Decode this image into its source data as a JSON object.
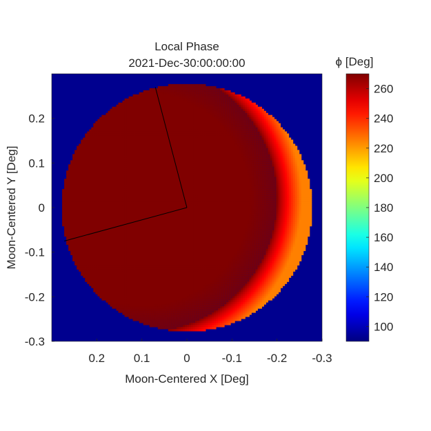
{
  "chart_data": {
    "type": "heatmap",
    "title": [
      "Local Phase",
      "2021-Dec-30:00:00:00"
    ],
    "xlabel": "Moon-Centered X [Deg]",
    "ylabel": "Moon-Centered Y [Deg]",
    "xlim": [
      0.3,
      -0.3
    ],
    "ylim": [
      -0.3,
      0.3
    ],
    "x_reversed": true,
    "xticks": [
      0.2,
      0.1,
      0,
      -0.1,
      -0.2,
      -0.3
    ],
    "xtick_labels": [
      "0.2",
      "0.1",
      "0",
      "-0.1",
      "-0.2",
      "-0.3"
    ],
    "yticks": [
      0.2,
      0.1,
      0,
      -0.1,
      -0.2,
      -0.3
    ],
    "ytick_labels": [
      "0.2",
      "0.1",
      "0",
      "-0.1",
      "-0.2",
      "-0.3"
    ],
    "grid": false,
    "colormap": "jet",
    "background_color": "#00008f",
    "colorbar": {
      "label": "ϕ [Deg]",
      "range": [
        90,
        270
      ],
      "ticks": [
        100,
        120,
        140,
        160,
        180,
        200,
        220,
        240,
        260
      ],
      "tick_labels": [
        "100",
        "120",
        "140",
        "160",
        "180",
        "200",
        "220",
        "240",
        "260"
      ]
    },
    "disk": {
      "center": [
        0,
        0
      ],
      "radius": 0.278,
      "plateau_value": 270,
      "limb_min_value": 225,
      "terminator_shift": [
        0.1,
        0.02
      ],
      "terminator_radius": 0.3
    },
    "reference_lines": [
      {
        "name": "radius-to-top",
        "from": [
          0,
          0
        ],
        "to": [
          0.07,
          0.27
        ]
      },
      {
        "name": "radius-to-left",
        "from": [
          0,
          0
        ],
        "to": [
          0.272,
          -0.075
        ]
      }
    ]
  }
}
